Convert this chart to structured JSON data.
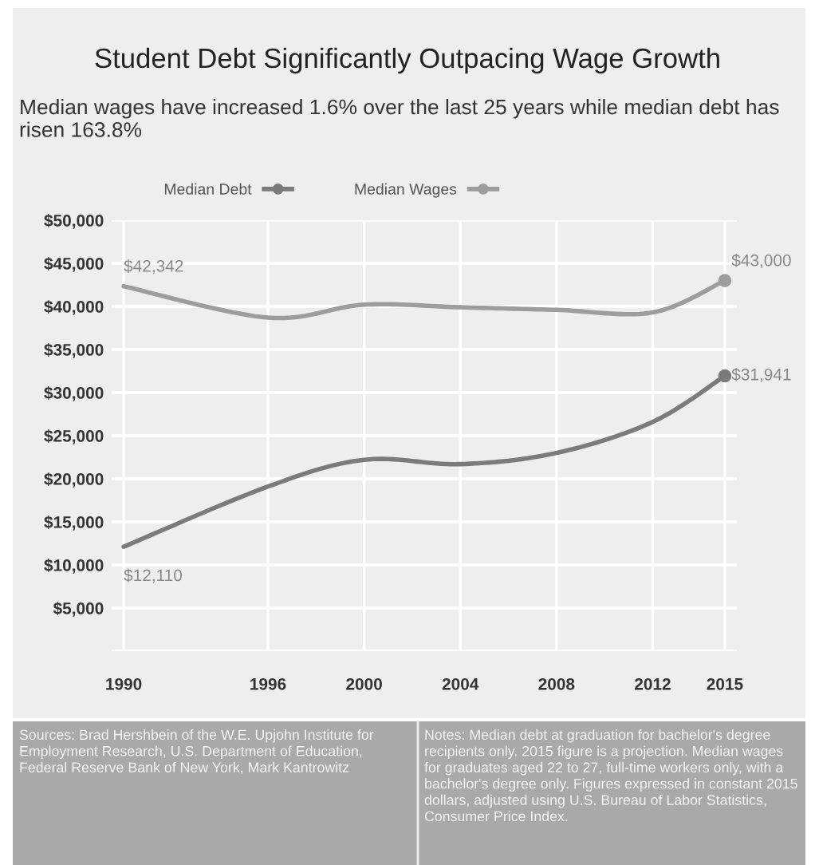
{
  "chart_data": {
    "type": "line",
    "title": "Student Debt Significantly Outpacing Wage Growth",
    "subtitle": "Median wages have increased 1.6% over the last 25 years while median debt has risen 163.8%",
    "x": [
      1990,
      1996,
      2000,
      2004,
      2008,
      2012,
      2015
    ],
    "series": [
      {
        "name": "Median Debt",
        "color": "#7b7b7b",
        "values": [
          12110,
          19100,
          22200,
          21700,
          23000,
          26600,
          31941
        ],
        "value_labels": [
          "$12,110",
          null,
          null,
          null,
          null,
          null,
          "$31,941"
        ]
      },
      {
        "name": "Median Wages",
        "color": "#9d9d9d",
        "values": [
          42342,
          38700,
          40200,
          39900,
          39600,
          39300,
          43000
        ],
        "value_labels": [
          "$42,342",
          null,
          null,
          null,
          null,
          null,
          "$43,000"
        ]
      }
    ],
    "xlim": [
      1989.5,
      2015.5
    ],
    "xticks": [
      1990,
      1996,
      2000,
      2004,
      2008,
      2012,
      2015
    ],
    "ylim": [
      0,
      50000
    ],
    "yticks": [
      {
        "value": 5000,
        "label": "$5,000"
      },
      {
        "value": 10000,
        "label": "$10,000"
      },
      {
        "value": 15000,
        "label": "$15,000"
      },
      {
        "value": 20000,
        "label": "$20,000"
      },
      {
        "value": 25000,
        "label": "$25,000"
      },
      {
        "value": 30000,
        "label": "$30,000"
      },
      {
        "value": 35000,
        "label": "$35,000"
      },
      {
        "value": 40000,
        "label": "$40,000"
      },
      {
        "value": 45000,
        "label": "$45,000"
      },
      {
        "value": 50000,
        "label": "$50,000"
      }
    ],
    "grid": true,
    "legend": "top",
    "annotations": [
      "Sources: Brad Hershbein of the W.E. Upjohn Institute for Employment Research, U.S. Department of Education, Federal Reserve Bank of New York, Mark Kantrowitz",
      "Notes: Median debt at graduation for bachelor's degree recipients only. 2015 figure is a projection. Median wages for graduates aged 22 to 27, full-time workers only, with a bachelor's degree only. Figures expressed in constant 2015 dollars, adjusted using U.S. Bureau of Labor Statistics, Consumer Price Index."
    ]
  }
}
